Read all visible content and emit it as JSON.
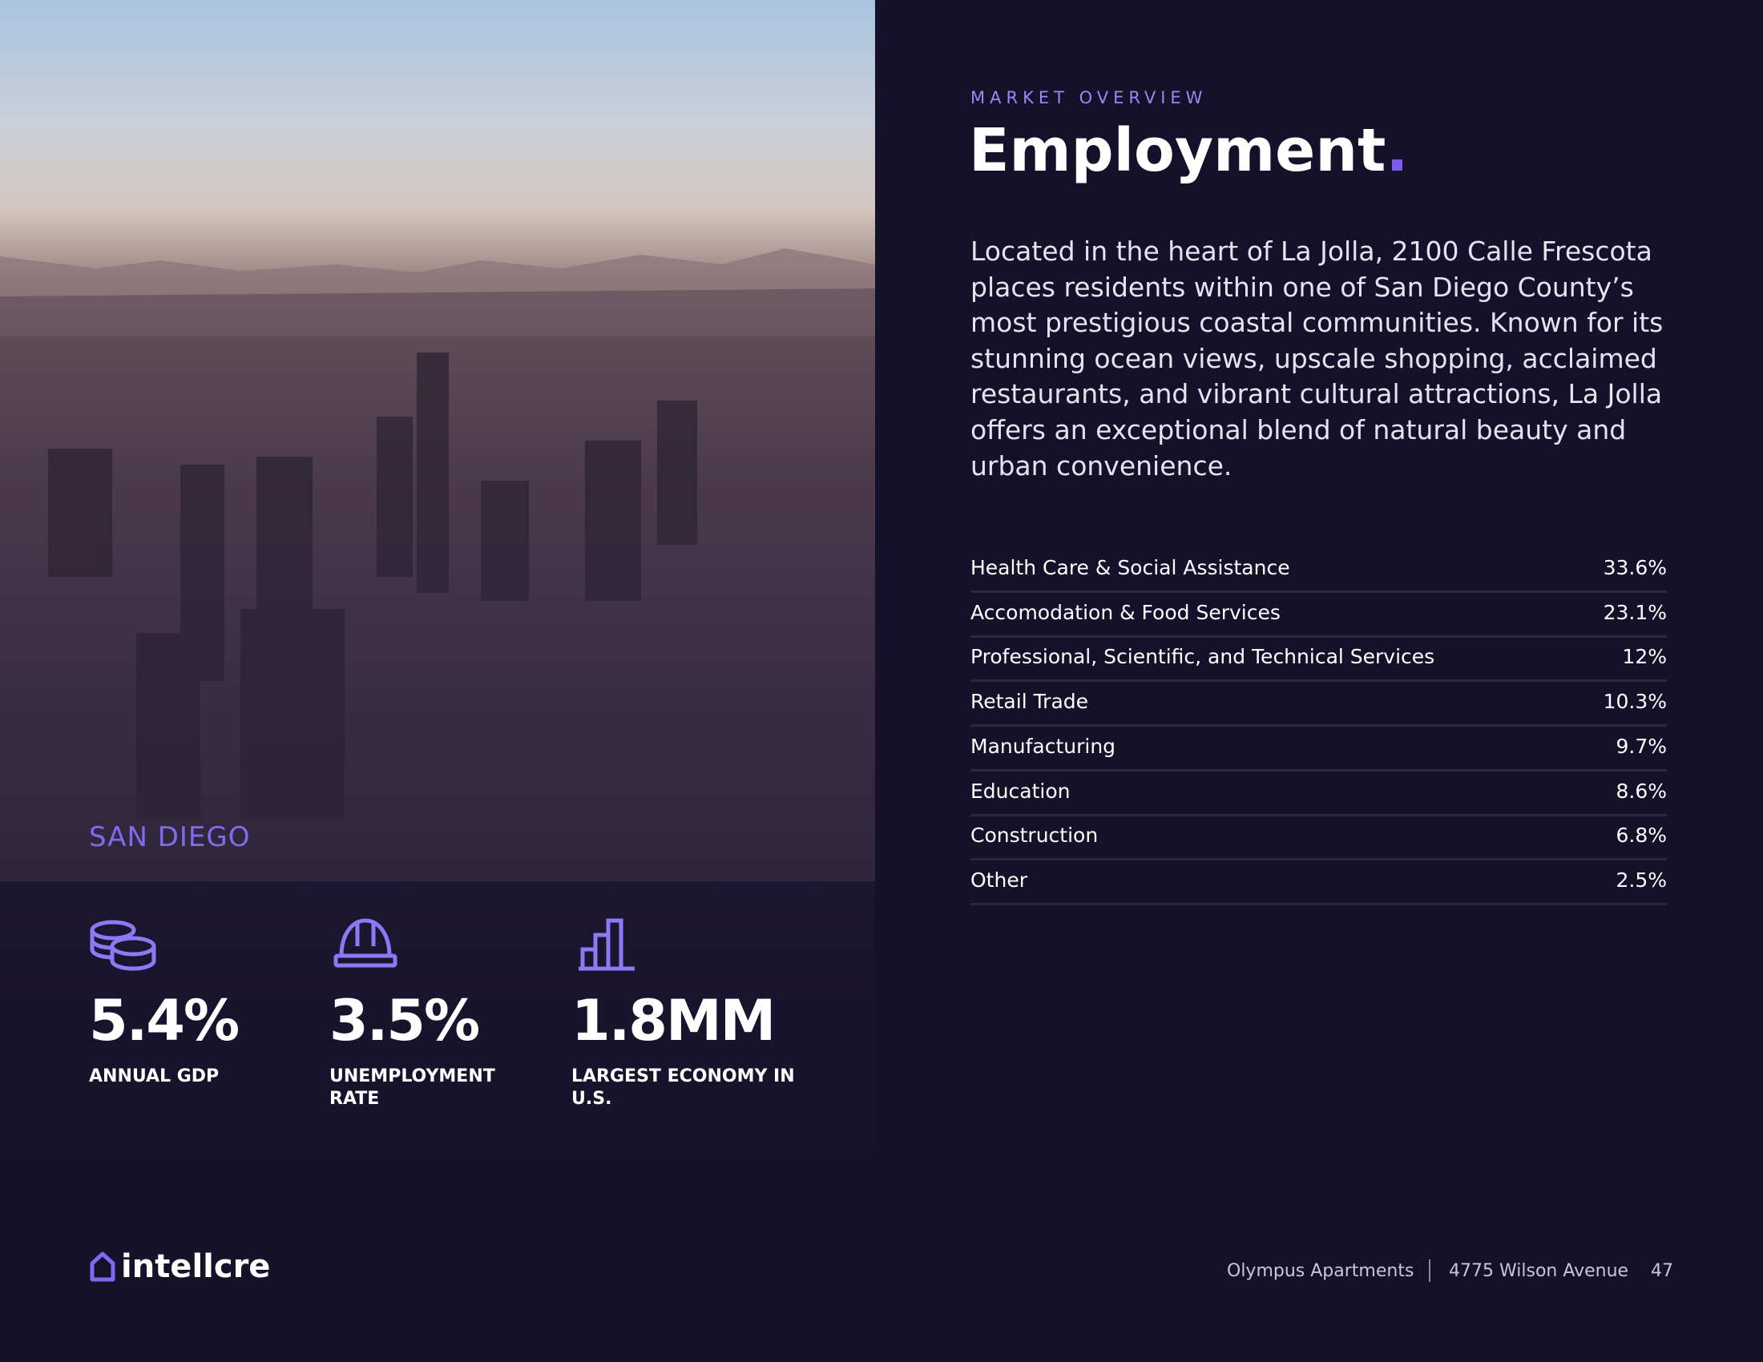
{
  "left": {
    "city": "SAN DIEGO",
    "stats": [
      {
        "value": "5.4%",
        "label": "ANNUAL GDP"
      },
      {
        "value": "3.5%",
        "label": "UNEMPLOYMENT RATE"
      },
      {
        "value": "1.8MM",
        "label": "LARGEST ECONOMY IN U.S."
      }
    ],
    "logo": "intellcre"
  },
  "right": {
    "eyebrow": "MARKET OVERVIEW",
    "title": "Employment",
    "title_mark": ".",
    "paragraph": "Located in the heart of La Jolla, 2100 Calle Frescota places residents within one of San Diego County’s most prestigious coastal communities. Known for its stunning ocean views, upscale shopping, acclaimed restaurants, and vibrant cultural attractions, La Jolla offers an exceptional blend of natural beauty and urban convenience.",
    "table": {
      "rows": [
        [
          "Health Care & Social Assistance",
          "33.6%"
        ],
        [
          "Accomodation & Food Services",
          "23.1%"
        ],
        [
          "Professional,  Scientific, and  Technical Services",
          "12%"
        ],
        [
          "Retail Trade",
          "10.3%"
        ],
        [
          "Manufacturing",
          "9.7%"
        ],
        [
          "Education",
          "8.6%"
        ],
        [
          "Construction",
          "6.8%"
        ],
        [
          "Other",
          "2.5%"
        ]
      ]
    }
  },
  "footer": {
    "property": "Olympus Apartments",
    "address": "4775 Wilson Avenue",
    "page": "47"
  }
}
